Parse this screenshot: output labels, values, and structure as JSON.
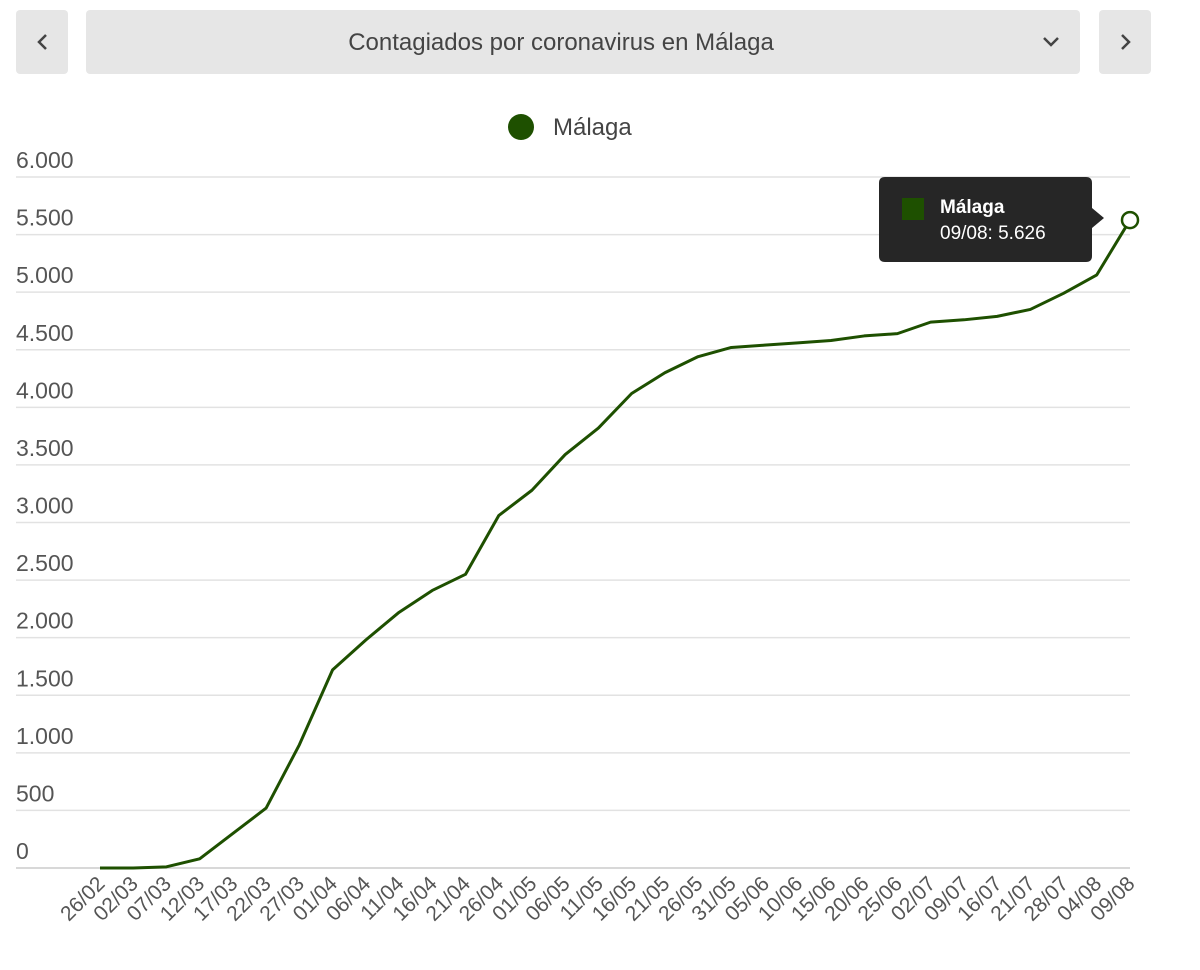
{
  "chart_data": {
    "type": "line",
    "title": "Contagiados por coronavirus en Málaga",
    "categories": [
      "26/02",
      "02/03",
      "07/03",
      "12/03",
      "17/03",
      "22/03",
      "27/03",
      "01/04",
      "06/04",
      "11/04",
      "16/04",
      "21/04",
      "26/04",
      "01/05",
      "06/05",
      "11/05",
      "16/05",
      "21/05",
      "26/05",
      "31/05",
      "05/06",
      "10/06",
      "15/06",
      "20/06",
      "25/06",
      "02/07",
      "09/07",
      "16/07",
      "21/07",
      "28/07",
      "04/08",
      "09/08"
    ],
    "series": [
      {
        "name": "Málaga",
        "color": "#1e5000",
        "values": [
          0,
          0,
          10,
          80,
          300,
          520,
          1070,
          1720,
          1980,
          2220,
          2410,
          2550,
          3060,
          3280,
          3590,
          3820,
          4120,
          4300,
          4440,
          4520,
          4540,
          4560,
          4580,
          4620,
          4640,
          4740,
          4760,
          4790,
          4850,
          4990,
          5150,
          5626
        ]
      }
    ],
    "ylim": [
      0,
      6000
    ],
    "yticks": [
      0,
      500,
      {
        "value": 1000,
        "label": "1.000"
      },
      {
        "value": 1500,
        "label": "1.500"
      },
      {
        "value": 2000,
        "label": "2.000"
      },
      {
        "value": 2500,
        "label": "2.500"
      },
      {
        "value": 3000,
        "label": "3.000"
      },
      {
        "value": 3500,
        "label": "3.500"
      },
      {
        "value": 4000,
        "label": "4.000"
      },
      {
        "value": 4500,
        "label": "4.500"
      },
      {
        "value": 5000,
        "label": "5.000"
      },
      {
        "value": 5500,
        "label": "5.500"
      },
      {
        "value": 6000,
        "label": "6.000"
      }
    ],
    "grid": true,
    "legend": "top",
    "tooltip": {
      "label": "09/08: 5.626"
    }
  }
}
